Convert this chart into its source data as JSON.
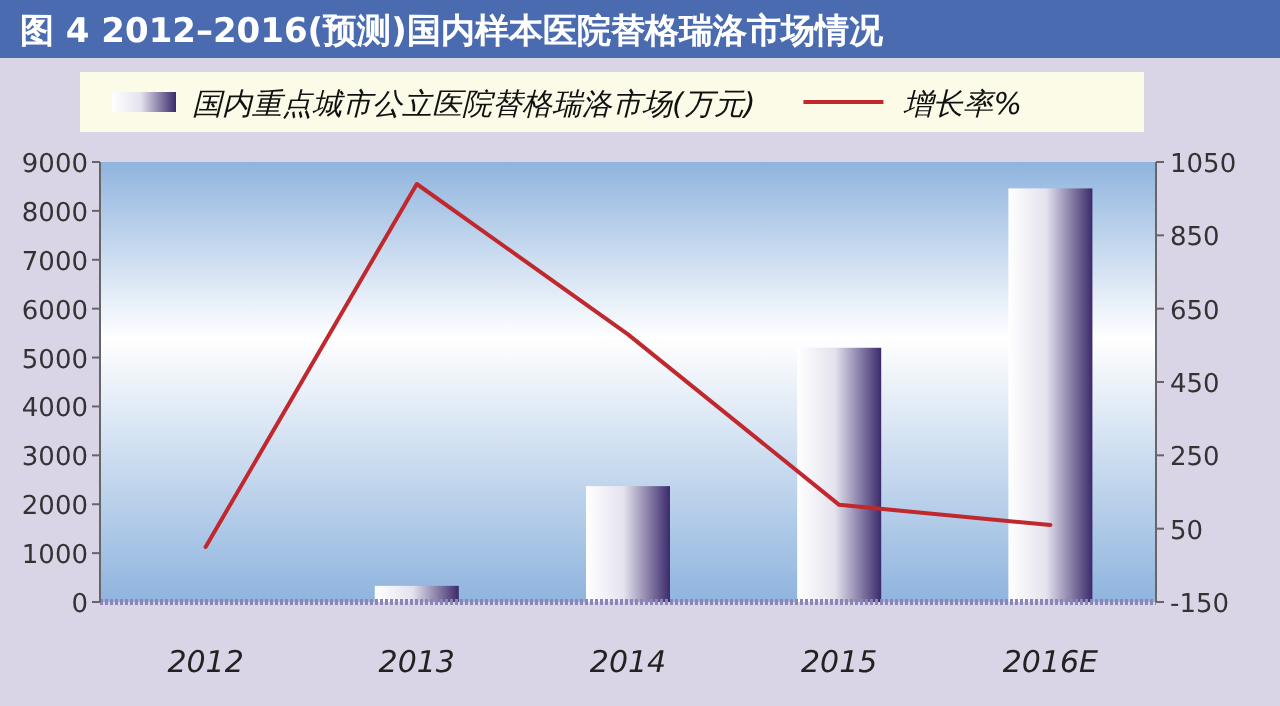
{
  "chart_data": {
    "type": "bar",
    "title": "图 4  2012–2016(预测)国内样本医院替格瑞洛市场情况",
    "categories": [
      "2012",
      "2013",
      "2014",
      "2015",
      "2016E"
    ],
    "series": [
      {
        "name": "国内重点城市公立医院替格瑞洛市场(万元)",
        "color": "#3b2a6b",
        "values": [
          null,
          330,
          2370,
          5200,
          8460
        ]
      },
      {
        "name": "增长率%",
        "type": "line",
        "axis": "y2",
        "color": "#c0282d",
        "values": [
          0,
          990,
          580,
          115,
          60
        ]
      }
    ],
    "ylim": [
      0,
      9000
    ],
    "yticks": [
      0,
      1000,
      2000,
      3000,
      4000,
      5000,
      6000,
      7000,
      8000,
      9000
    ],
    "y2lim": [
      -150,
      1050
    ],
    "y2ticks": [
      -150,
      50,
      250,
      450,
      650,
      850,
      1050
    ],
    "legend": "top",
    "grid": false
  }
}
